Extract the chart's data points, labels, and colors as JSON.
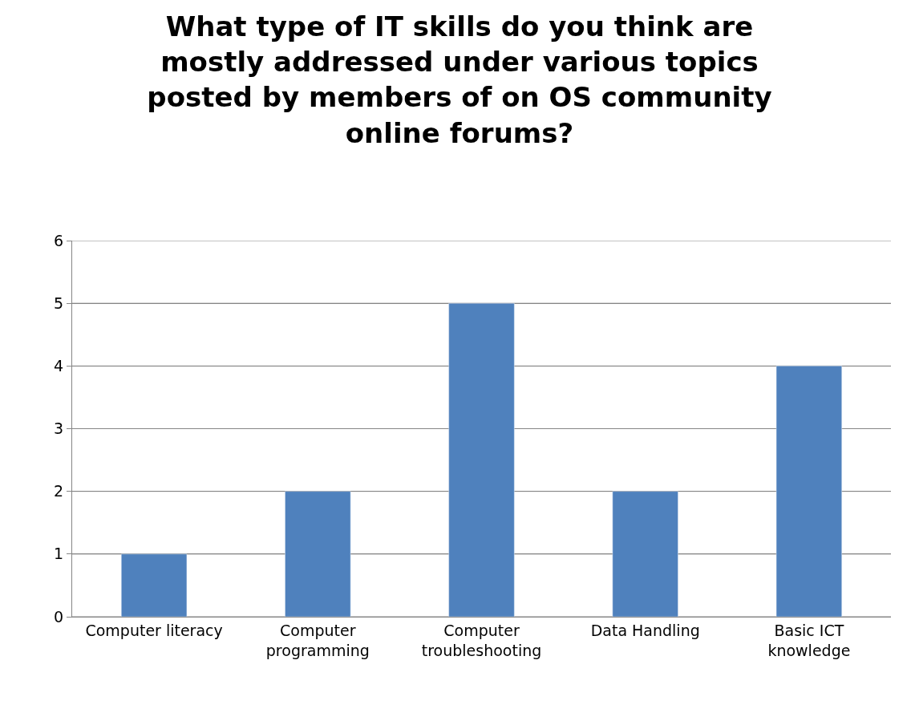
{
  "chart_data": {
    "type": "bar",
    "title": "What type of IT skills do you think are mostly addressed under various topics posted by members of on OS community online forums?",
    "categories": [
      "Computer literacy",
      "Computer programming",
      "Computer troubleshooting",
      "Data Handling",
      "Basic ICT knowledge"
    ],
    "values": [
      1,
      2,
      5,
      2,
      4
    ],
    "color": "#4f81bd",
    "ylim": [
      0,
      6
    ],
    "yticks": [
      0,
      1,
      2,
      3,
      4,
      5,
      6
    ],
    "grid": "y"
  }
}
